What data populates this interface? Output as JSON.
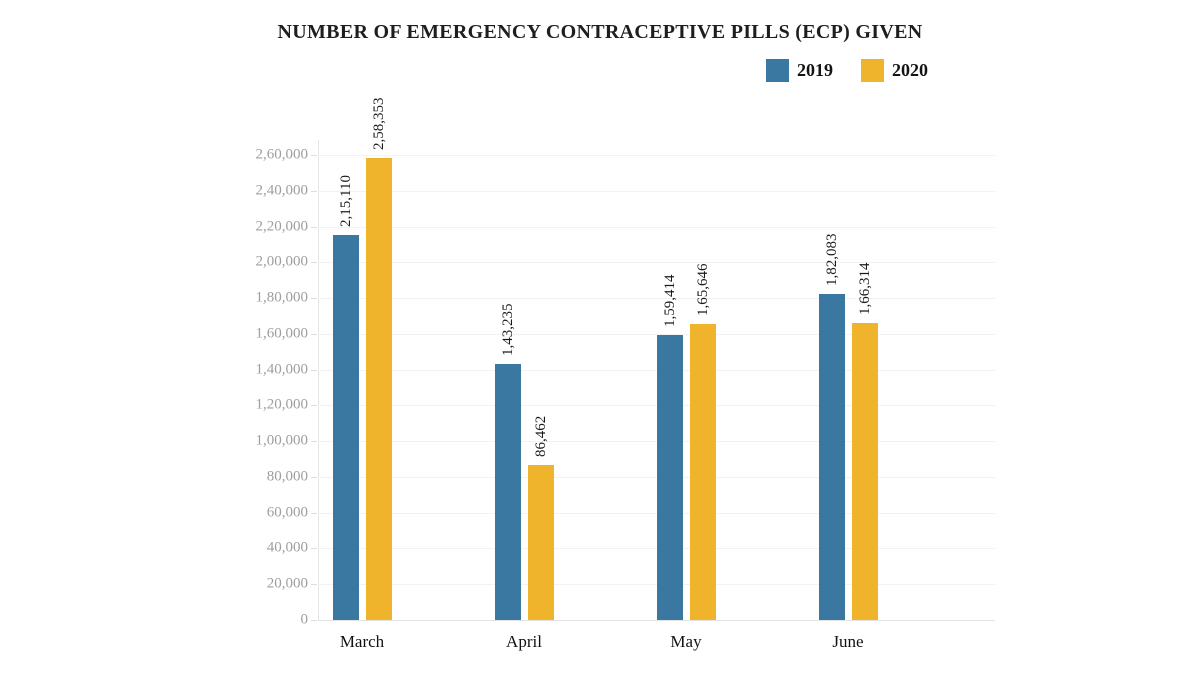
{
  "title": "NUMBER OF EMERGENCY CONTRACEPTIVE PILLS (ECP) GIVEN",
  "chart_data": {
    "type": "bar",
    "title": "NUMBER OF EMERGENCY CONTRACEPTIVE PILLS (ECP) GIVEN",
    "categories": [
      "March",
      "April",
      "May",
      "June"
    ],
    "series": [
      {
        "name": "2019",
        "color": "#3a78a1",
        "values": [
          215110,
          143235,
          159414,
          182083
        ],
        "labels": [
          "2,15,110",
          "1,43,235",
          "1,59,414",
          "1,82,083"
        ]
      },
      {
        "name": "2020",
        "color": "#f0b42c",
        "values": [
          258353,
          86462,
          165646,
          166314
        ],
        "labels": [
          "2,58,353",
          "86,462",
          "1,65,646",
          "1,66,314"
        ]
      }
    ],
    "xlabel": "",
    "ylabel": "",
    "ylim": [
      0,
      260000
    ],
    "ytick_interval": 20000,
    "ytick_labels": [
      "0",
      "20,000",
      "40,000",
      "60,000",
      "80,000",
      "1,00,000",
      "1,20,000",
      "1,40,000",
      "1,60,000",
      "1,80,000",
      "2,00,000",
      "2,20,000",
      "2,40,000",
      "2,60,000"
    ],
    "grid": true,
    "legend_position": "top-right"
  }
}
